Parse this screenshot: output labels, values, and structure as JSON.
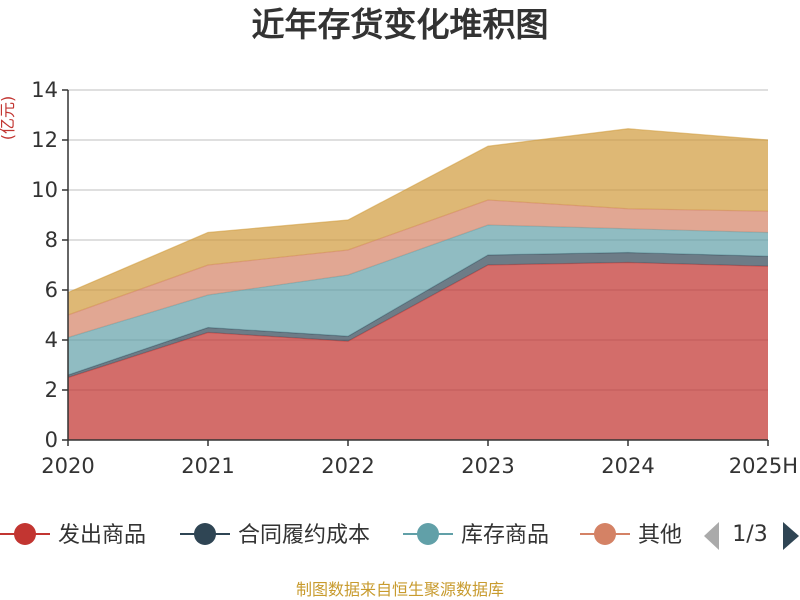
{
  "chart_data": {
    "type": "area",
    "stacked": true,
    "title": "近年存货变化堆积图",
    "unit_label": "(亿元)",
    "categories": [
      "2020",
      "2021",
      "2022",
      "2023",
      "2024",
      "2025H"
    ],
    "ylim": [
      0,
      14
    ],
    "yticks": [
      0,
      2,
      4,
      6,
      8,
      10,
      12,
      14
    ],
    "grid": true,
    "series": [
      {
        "name": "发出商品",
        "color": "#c23531",
        "values": [
          2.5,
          4.3,
          3.95,
          7.0,
          7.1,
          6.95
        ]
      },
      {
        "name": "合同履约成本",
        "color": "#2f4554",
        "values": [
          0.1,
          0.2,
          0.2,
          0.4,
          0.4,
          0.4
        ]
      },
      {
        "name": "库存商品",
        "color": "#61a0a8",
        "values": [
          1.5,
          1.3,
          2.45,
          1.2,
          0.95,
          0.95
        ]
      },
      {
        "name": "其他",
        "color": "#d48265",
        "values": [
          0.9,
          1.2,
          1.0,
          1.0,
          0.8,
          0.85
        ]
      },
      {
        "name": "",
        "color": "#d09a3a",
        "values": [
          0.9,
          1.3,
          1.2,
          2.15,
          3.2,
          2.85
        ]
      }
    ],
    "legend": {
      "position": "bottom",
      "visible_items": [
        "发出商品",
        "合同履约成本",
        "库存商品",
        "其他"
      ],
      "page_text": "1/3"
    },
    "source_text": "制图数据来自恒生聚源数据库"
  }
}
